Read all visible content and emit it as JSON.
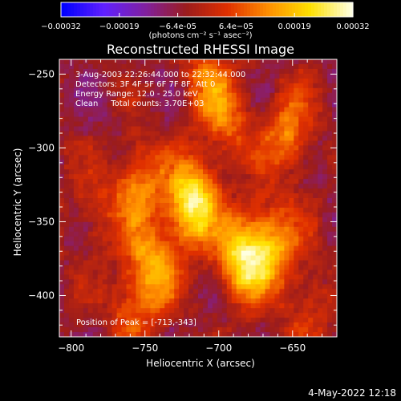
{
  "colorbar": {
    "ticks": [
      "-0.00032",
      "-0.00019",
      "-6.4e-05",
      "6.4e-05",
      "0.00019",
      "0.00032"
    ],
    "unit_label": "(photons cm⁻² s⁻¹ asec⁻²)",
    "colors": [
      "#0000ff",
      "#6020ff",
      "#8020a0",
      "#9b1c1c",
      "#e03000",
      "#ff9000",
      "#ffe000",
      "#ffffe0"
    ]
  },
  "chart_data": {
    "type": "heatmap",
    "title": "Reconstructed RHESSI Image",
    "xlabel": "Heliocentric X (arcsec)",
    "ylabel": "Heliocentric Y (arcsec)",
    "xlim": [
      -808,
      -620
    ],
    "ylim": [
      -428,
      -240
    ],
    "x_ticks": [
      -800,
      -750,
      -700,
      -650
    ],
    "y_ticks": [
      -250,
      -300,
      -350,
      -400
    ],
    "x_tick_labels": [
      "−800",
      "−750",
      "−700",
      "−650"
    ],
    "y_tick_labels": [
      "−250",
      "−300",
      "−350",
      "−400"
    ],
    "color_range": [
      -0.00032,
      0.00032
    ],
    "peak": [
      -713,
      -343
    ],
    "sources": [
      {
        "x": -718,
        "y": -338,
        "peak": 0.00032
      },
      {
        "x": -683,
        "y": -375,
        "peak": 0.00029
      },
      {
        "x": -745,
        "y": -380,
        "peak": 0.0002
      },
      {
        "x": -755,
        "y": -325,
        "peak": 0.00018
      },
      {
        "x": -662,
        "y": -365,
        "peak": 0.00019
      },
      {
        "x": -653,
        "y": -290,
        "peak": 0.00017
      },
      {
        "x": -708,
        "y": -255,
        "peak": 0.00014
      },
      {
        "x": -693,
        "y": -285,
        "peak": 0.00012
      },
      {
        "x": -760,
        "y": -410,
        "peak": 0.00012
      },
      {
        "x": -785,
        "y": -345,
        "peak": 8e-05
      },
      {
        "x": -640,
        "y": -410,
        "peak": 0.0001
      }
    ],
    "annotations": {
      "time": "3-Aug-2003 22:26:44.000 to 22:32:44.000",
      "detectors": "Detectors: 3F 4F 5F 6F 7F 8F, Att 0",
      "energy": "Energy Range: 12.0 - 25.0 keV",
      "clean": "Clean     Total counts: 3.70E+03",
      "peak_text": "Position of Peak = [-713,-343]"
    }
  },
  "footer": {
    "date": "4-May-2022 12:18"
  }
}
